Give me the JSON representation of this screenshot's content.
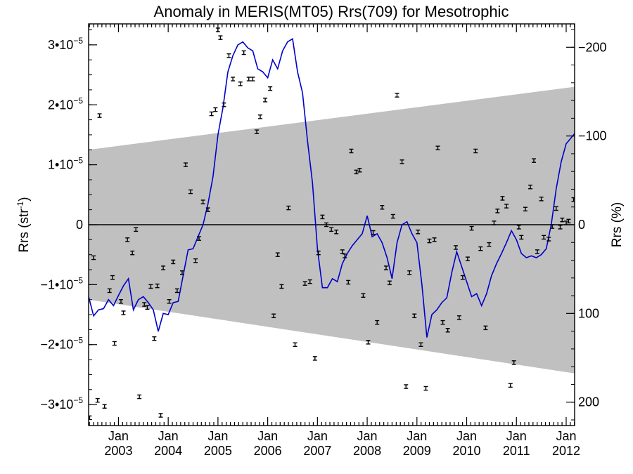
{
  "chart_data": {
    "type": "line",
    "title": "Anomaly in MERIS(MT05) Rrs(709) for Mesotrophic",
    "ylabel_left": {
      "base": "Rrs (str",
      "sup": "-1",
      "close": ")"
    },
    "ylabel_right": "Rrs (%)",
    "xlim": [
      2002.4,
      2012.17
    ],
    "ylim": [
      -3.35e-05,
      3.35e-05
    ],
    "x_ticks": [
      {
        "value": 2003.0,
        "month": "Jan",
        "year": "2003"
      },
      {
        "value": 2004.0,
        "month": "Jan",
        "year": "2004"
      },
      {
        "value": 2005.0,
        "month": "Jan",
        "year": "2005"
      },
      {
        "value": 2006.0,
        "month": "Jan",
        "year": "2006"
      },
      {
        "value": 2007.0,
        "month": "Jan",
        "year": "2007"
      },
      {
        "value": 2008.0,
        "month": "Jan",
        "year": "2008"
      },
      {
        "value": 2009.0,
        "month": "Jan",
        "year": "2009"
      },
      {
        "value": 2010.0,
        "month": "Jan",
        "year": "2010"
      },
      {
        "value": 2011.0,
        "month": "Jan",
        "year": "2011"
      },
      {
        "value": 2012.0,
        "month": "Jan",
        "year": "2012"
      }
    ],
    "y_ticks_left": [
      {
        "value": 3e-05,
        "label": "3•10",
        "exp": "−5"
      },
      {
        "value": 2e-05,
        "label": "2•10",
        "exp": "−5"
      },
      {
        "value": 1e-05,
        "label": "1•10",
        "exp": "−5"
      },
      {
        "value": 0,
        "label": "0",
        "exp": ""
      },
      {
        "value": -1e-05,
        "label": "−1•10",
        "exp": "−5"
      },
      {
        "value": -2e-05,
        "label": "−2•10",
        "exp": "−5"
      },
      {
        "value": -3e-05,
        "label": "−3•10",
        "exp": "−5"
      }
    ],
    "y_ticks_right": [
      {
        "value": 2.96e-05,
        "label": "−200"
      },
      {
        "value": 1.48e-05,
        "label": "−100"
      },
      {
        "value": 0,
        "label": "0"
      },
      {
        "value": -1.48e-05,
        "label": "100"
      },
      {
        "value": -2.96e-05,
        "label": "200"
      }
    ],
    "band": {
      "x": [
        2002.4,
        2012.17
      ],
      "upper": [
        1.25e-05,
        2.3e-05
      ],
      "lower": [
        -1.25e-05,
        -2.48e-05
      ],
      "color": "#c0c0c0"
    },
    "zero_line": true,
    "series": [
      {
        "type": "line",
        "color": "#0000cc",
        "x": [
          2002.4,
          2002.5,
          2002.6,
          2002.7,
          2002.8,
          2002.9,
          2003.0,
          2003.1,
          2003.2,
          2003.3,
          2003.4,
          2003.5,
          2003.6,
          2003.7,
          2003.8,
          2003.9,
          2004.0,
          2004.1,
          2004.2,
          2004.3,
          2004.4,
          2004.5,
          2004.6,
          2004.7,
          2004.8,
          2004.9,
          2005.0,
          2005.1,
          2005.2,
          2005.3,
          2005.4,
          2005.5,
          2005.6,
          2005.7,
          2005.8,
          2005.9,
          2006.0,
          2006.1,
          2006.2,
          2006.3,
          2006.4,
          2006.5,
          2006.6,
          2006.7,
          2006.8,
          2006.9,
          2007.0,
          2007.1,
          2007.2,
          2007.3,
          2007.4,
          2007.5,
          2007.6,
          2007.7,
          2007.8,
          2007.9,
          2008.0,
          2008.1,
          2008.2,
          2008.3,
          2008.4,
          2008.5,
          2008.6,
          2008.7,
          2008.8,
          2008.9,
          2009.0,
          2009.1,
          2009.2,
          2009.3,
          2009.4,
          2009.5,
          2009.6,
          2009.7,
          2009.8,
          2009.9,
          2010.0,
          2010.1,
          2010.2,
          2010.3,
          2010.4,
          2010.5,
          2010.6,
          2010.7,
          2010.8,
          2010.9,
          2011.0,
          2011.1,
          2011.2,
          2011.3,
          2011.4,
          2011.5,
          2011.6,
          2011.7,
          2011.8,
          2011.9,
          2012.0,
          2012.1,
          2012.17
        ],
        "y": [
          -1.2e-05,
          -1.52e-05,
          -1.42e-05,
          -1.4e-05,
          -1.25e-05,
          -1.35e-05,
          -1.18e-05,
          -1.02e-05,
          -9e-06,
          -1.42e-05,
          -1.25e-05,
          -1.2e-05,
          -1.3e-05,
          -1.42e-05,
          -1.78e-05,
          -1.48e-05,
          -1.5e-05,
          -1.3e-05,
          -1.28e-05,
          -8.5e-06,
          -4.2e-06,
          -4e-06,
          -2e-06,
          0.0,
          3.5e-06,
          8e-06,
          1.5e-05,
          1.95e-05,
          2.55e-05,
          2.82e-05,
          3e-05,
          3.05e-05,
          2.95e-05,
          2.9e-05,
          2.6e-05,
          2.55e-05,
          2.45e-05,
          2.75e-05,
          2.6e-05,
          2.9e-05,
          3.05e-05,
          3.1e-05,
          2.55e-05,
          2.2e-05,
          1.4e-05,
          7e-06,
          -4e-06,
          -1.05e-05,
          -1.05e-05,
          -9e-06,
          -9.5e-06,
          -6.5e-06,
          -4.8e-06,
          -3.5e-06,
          -2.5e-06,
          -1.5e-06,
          1.5e-06,
          -2e-06,
          -1.5e-06,
          -3e-06,
          -5.5e-06,
          -9e-06,
          -3e-06,
          0.0,
          5e-07,
          -1.5e-06,
          -3e-06,
          -1e-05,
          -1.88e-05,
          -1.5e-05,
          -1.42e-05,
          -1.3e-05,
          -1.22e-05,
          -8e-06,
          -4.5e-06,
          -7e-06,
          -9.5e-06,
          -1.2e-05,
          -1.15e-05,
          -1.35e-05,
          -1.15e-05,
          -8.5e-06,
          -6.5e-06,
          -4.8e-06,
          -3e-06,
          -1e-06,
          -2.5e-06,
          -4.8e-06,
          -5.5e-06,
          -5.2e-06,
          -5.5e-06,
          -5e-06,
          -4e-06,
          0.0,
          6e-06,
          1.05e-05,
          1.35e-05,
          1.45e-05,
          1.52e-05
        ]
      },
      {
        "type": "scatter",
        "color": "#000000",
        "error_bars": true,
        "x": [
          2002.42,
          2002.5,
          2002.58,
          2002.62,
          2002.72,
          2002.82,
          2002.88,
          2002.92,
          2003.05,
          2003.1,
          2003.18,
          2003.28,
          2003.35,
          2003.42,
          2003.52,
          2003.58,
          2003.65,
          2003.72,
          2003.78,
          2003.85,
          2003.9,
          2004.02,
          2004.1,
          2004.18,
          2004.28,
          2004.35,
          2004.45,
          2004.55,
          2004.62,
          2004.7,
          2004.8,
          2004.87,
          2004.95,
          2005.0,
          2005.05,
          2005.12,
          2005.22,
          2005.3,
          2005.45,
          2005.52,
          2005.62,
          2005.7,
          2005.78,
          2005.85,
          2005.95,
          2006.05,
          2006.12,
          2006.2,
          2006.28,
          2006.42,
          2006.55,
          2006.75,
          2006.85,
          2006.95,
          2007.02,
          2007.1,
          2007.18,
          2007.28,
          2007.38,
          2007.5,
          2007.55,
          2007.62,
          2007.68,
          2007.78,
          2007.85,
          2007.92,
          2008.02,
          2008.12,
          2008.2,
          2008.3,
          2008.38,
          2008.45,
          2008.52,
          2008.6,
          2008.7,
          2008.78,
          2008.85,
          2008.95,
          2009.02,
          2009.08,
          2009.18,
          2009.25,
          2009.35,
          2009.42,
          2009.52,
          2009.62,
          2009.78,
          2009.85,
          2009.92,
          2010.02,
          2010.1,
          2010.18,
          2010.28,
          2010.38,
          2010.45,
          2010.55,
          2010.62,
          2010.72,
          2010.8,
          2010.88,
          2010.95,
          2011.05,
          2011.1,
          2011.18,
          2011.28,
          2011.35,
          2011.42,
          2011.5,
          2011.55,
          2011.65,
          2011.72,
          2011.8,
          2011.88,
          2011.92,
          2012.0,
          2012.05,
          2012.15
        ],
        "y": [
          -3.22e-05,
          -5.5e-06,
          -2.93e-05,
          1.82e-05,
          -3.03e-05,
          -1.1e-05,
          -8.8e-06,
          -1.98e-05,
          -1.28e-05,
          -1.47e-05,
          -2.5e-06,
          -4.7e-06,
          -8e-07,
          -2.87e-05,
          -1.33e-05,
          -1.38e-05,
          -1.03e-05,
          -1.9e-05,
          -1.02e-05,
          -3.18e-05,
          -7.2e-06,
          -1.28e-05,
          -6.2e-06,
          -1.1e-05,
          -8e-06,
          1e-05,
          5.5e-06,
          -6e-06,
          -2.3e-06,
          3.8e-06,
          2.5e-06,
          1.85e-05,
          1.92e-05,
          3.25e-05,
          3.12e-05,
          2e-05,
          2.82e-05,
          2.43e-05,
          2.35e-05,
          2.87e-05,
          2.43e-05,
          2.43e-05,
          1.55e-05,
          1.8e-05,
          2.08e-05,
          2.27e-05,
          -1.52e-05,
          -5e-06,
          -1.03e-05,
          2.8e-06,
          -2e-05,
          -9.8e-06,
          -9.5e-06,
          -2.23e-05,
          -4.7e-06,
          1.3e-06,
          0.0,
          -8e-07,
          -1.2e-06,
          -4.5e-06,
          -5.2e-06,
          -9.6e-06,
          1.23e-05,
          8.8e-06,
          9.1e-06,
          -1.18e-05,
          -1.96e-05,
          -1.3e-06,
          -1.63e-05,
          2.9e-06,
          -7.2e-06,
          -9.7e-06,
          1.4e-06,
          2.16e-05,
          1.05e-05,
          -2.7e-05,
          -8e-06,
          -1.52e-05,
          -1.2e-06,
          -2e-05,
          -2.73e-05,
          -2.7e-06,
          -2.5e-06,
          1.28e-05,
          -1.63e-05,
          -1.76e-05,
          -3.8e-06,
          -1.55e-05,
          -8.8e-06,
          -5.7e-06,
          -6e-07,
          1.23e-05,
          -4e-06,
          -1.72e-05,
          -3.3e-06,
          3e-07,
          2.3e-06,
          4.4e-06,
          3.1e-06,
          -2.68e-05,
          -2.3e-05,
          -4e-07,
          -2.1e-06,
          2.6e-06,
          6.3e-06,
          1.07e-05,
          -4.5e-06,
          4.3e-06,
          -2.1e-06,
          -2.4e-06,
          -3e-07,
          2.7e-06,
          -4e-07,
          8e-07,
          3e-07,
          6e-07,
          4.2e-06
        ],
        "err": 3e-07
      }
    ]
  }
}
